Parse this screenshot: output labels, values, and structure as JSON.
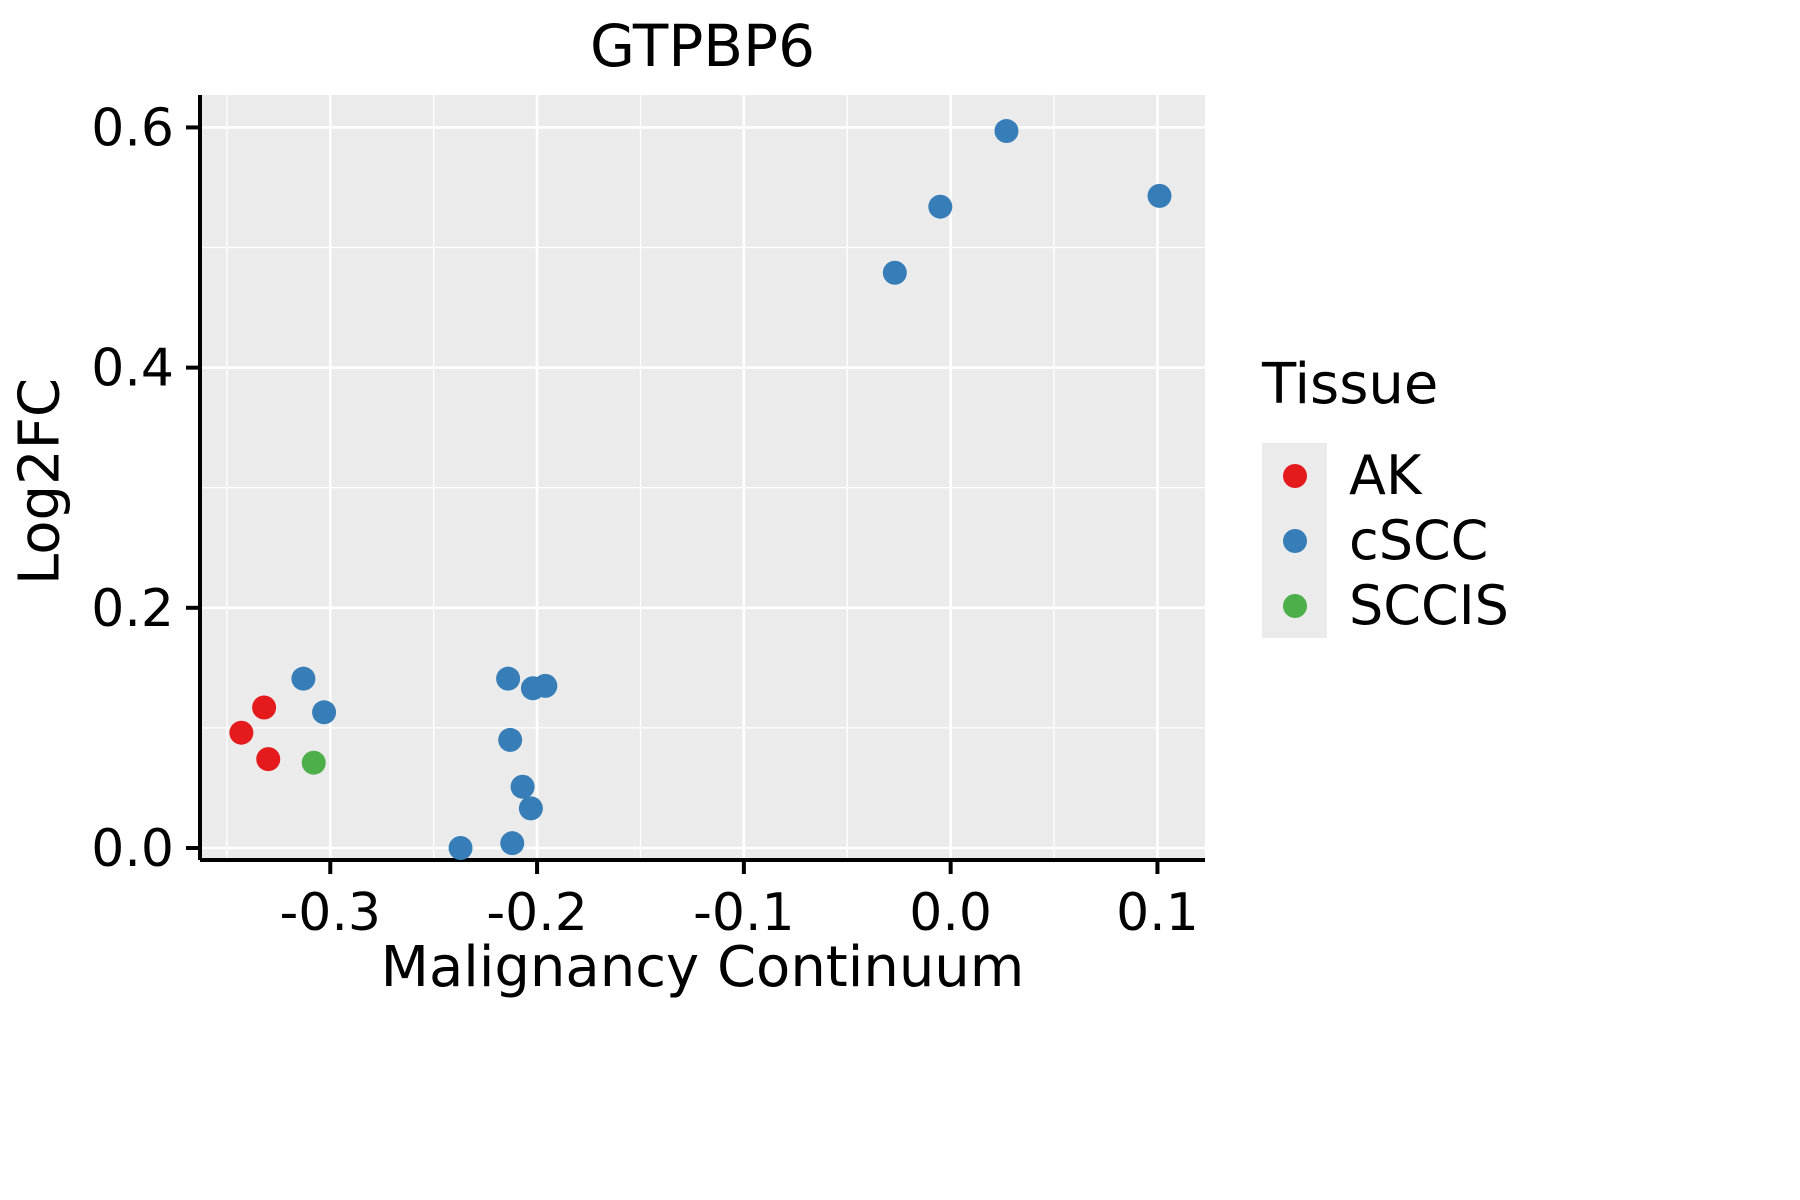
{
  "chart_data": {
    "type": "scatter",
    "title": "GTPBP6",
    "xlabel": "Malignancy Continuum",
    "ylabel": "Log2FC",
    "legend_title": "Tissue",
    "legend_position": "right",
    "grid": true,
    "panel_bg": "#EBEBEB",
    "grid_major_color": "#FFFFFF",
    "grid_minor_color": "#FFFFFF",
    "axis_color": "#000000",
    "xlim": [
      -0.363,
      0.123
    ],
    "ylim": [
      -0.01,
      0.627
    ],
    "xticks": [
      -0.3,
      -0.2,
      -0.1,
      0.0,
      0.1
    ],
    "xtick_labels": [
      "-0.3",
      "-0.2",
      "-0.1",
      "0.0",
      "0.1"
    ],
    "yticks": [
      0.0,
      0.2,
      0.4,
      0.6
    ],
    "ytick_labels": [
      "0.0",
      "0.2",
      "0.4",
      "0.6"
    ],
    "xticks_minor": [
      -0.35,
      -0.25,
      -0.15,
      -0.05,
      0.05
    ],
    "yticks_minor": [
      0.1,
      0.3,
      0.5
    ],
    "point_radius": 12,
    "series": [
      {
        "name": "AK",
        "color": "#E41A1C",
        "points": [
          [
            -0.343,
            0.096
          ],
          [
            -0.332,
            0.117
          ],
          [
            -0.33,
            0.074
          ]
        ]
      },
      {
        "name": "cSCC",
        "color": "#377EB8",
        "points": [
          [
            -0.313,
            0.141
          ],
          [
            -0.303,
            0.113
          ],
          [
            -0.237,
            0.0
          ],
          [
            -0.214,
            0.141
          ],
          [
            -0.213,
            0.09
          ],
          [
            -0.212,
            0.004
          ],
          [
            -0.207,
            0.051
          ],
          [
            -0.203,
            0.033
          ],
          [
            -0.202,
            0.133
          ],
          [
            -0.196,
            0.135
          ],
          [
            -0.027,
            0.479
          ],
          [
            -0.005,
            0.534
          ],
          [
            0.027,
            0.597
          ],
          [
            0.101,
            0.543
          ]
        ]
      },
      {
        "name": "SCCIS",
        "color": "#4DAF4A",
        "points": [
          [
            -0.308,
            0.071
          ]
        ]
      }
    ]
  }
}
